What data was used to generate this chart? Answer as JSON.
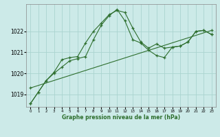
{
  "title": "Graphe pression niveau de la mer (hPa)",
  "background_color": "#cceae8",
  "grid_color": "#aad4d0",
  "line_color": "#2d6e2d",
  "xlim": [
    -0.5,
    23.5
  ],
  "ylim": [
    1018.4,
    1023.3
  ],
  "yticks": [
    1019,
    1020,
    1021,
    1022
  ],
  "xticks": [
    0,
    1,
    2,
    3,
    4,
    5,
    6,
    7,
    8,
    9,
    10,
    11,
    12,
    13,
    14,
    15,
    16,
    17,
    18,
    19,
    20,
    21,
    22,
    23
  ],
  "line1_x": [
    0,
    1,
    2,
    3,
    4,
    5,
    6,
    7,
    8,
    9,
    10,
    11,
    12,
    13,
    14,
    15,
    16,
    17,
    18,
    19,
    20,
    21,
    22,
    23
  ],
  "line1_y": [
    1018.55,
    1019.1,
    1019.65,
    1020.05,
    1020.65,
    1020.75,
    1020.8,
    1021.45,
    1022.0,
    1022.4,
    1022.8,
    1023.0,
    1022.9,
    1022.15,
    1021.5,
    1021.2,
    1021.4,
    1021.2,
    1021.25,
    1021.3,
    1021.5,
    1022.0,
    1022.05,
    1021.85
  ],
  "line2_x": [
    0,
    1,
    2,
    3,
    4,
    5,
    6,
    7,
    8,
    9,
    10,
    11,
    12,
    13,
    14,
    15,
    16,
    17,
    18,
    19,
    20,
    21,
    22,
    23
  ],
  "line2_y": [
    1018.55,
    1019.1,
    1019.65,
    1020.0,
    1020.3,
    1020.6,
    1020.7,
    1020.8,
    1021.6,
    1022.3,
    1022.75,
    1023.05,
    1022.5,
    1021.6,
    1021.45,
    1021.1,
    1020.85,
    1020.75,
    1021.25,
    1021.3,
    1021.5,
    1022.0,
    1022.05,
    1021.85
  ],
  "line3_x": [
    0,
    23
  ],
  "line3_y": [
    1019.3,
    1022.05
  ]
}
